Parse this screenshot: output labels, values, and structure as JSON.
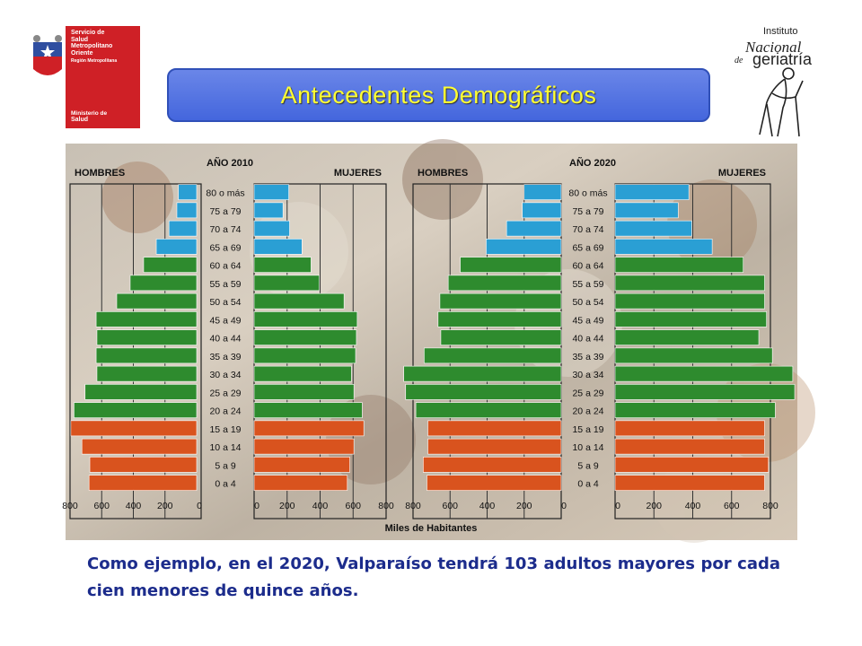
{
  "header": {
    "title": "Antecedentes Demográficos",
    "logo_left": {
      "lines": [
        "Servicio de",
        "Salud",
        "Metropolitano",
        "Oriente"
      ],
      "region": "Región Metropolitana",
      "ministry": [
        "Ministerio de",
        "Salud"
      ]
    },
    "logo_right": {
      "lines": [
        "Instituto",
        "Nacional",
        "de",
        "geriatría"
      ]
    }
  },
  "caption": "Como ejemplo, en el 2020, Valparaíso tendrá 103 adultos mayores por cada cien menores de quince años.",
  "colors": {
    "young": "#d9531e",
    "adult": "#2e8b2e",
    "elderly": "#2a9fd4",
    "title_bg": "#4f6fe0",
    "title_text": "#ffff33",
    "caption_text": "#1c2c8c",
    "logo_red": "#cf2026"
  },
  "chart_data": [
    {
      "type": "bar",
      "title": "AÑO 2010",
      "left_label": "HOMBRES",
      "right_label": "MUJERES",
      "xlabel": "Miles de Habitantes",
      "xlim": [
        0,
        800
      ],
      "xticks": [
        800,
        600,
        400,
        200,
        0,
        200,
        400,
        600,
        800
      ],
      "categories": [
        "80 o más",
        "75 a 79",
        "70 a 74",
        "65 a 69",
        "60 a 64",
        "55 a 59",
        "50 a 54",
        "45 a 49",
        "40 a 44",
        "35 a 39",
        "30 a 34",
        "25 a 29",
        "20 a 24",
        "15 a 19",
        "10 a 14",
        "5 a 9",
        "0 a 4"
      ],
      "series": [
        {
          "name": "HOMBRES",
          "values": [
            115,
            125,
            175,
            255,
            335,
            420,
            505,
            635,
            630,
            635,
            630,
            705,
            775,
            795,
            725,
            675,
            680
          ]
        },
        {
          "name": "MUJERES",
          "values": [
            210,
            175,
            215,
            290,
            345,
            395,
            545,
            625,
            620,
            615,
            590,
            605,
            655,
            665,
            605,
            580,
            565
          ]
        }
      ]
    },
    {
      "type": "bar",
      "title": "AÑO 2020",
      "left_label": "HOMBRES",
      "right_label": "MUJERES",
      "xlabel": "Miles de Habitantes",
      "xlim": [
        0,
        800
      ],
      "xticks": [
        800,
        600,
        400,
        200,
        0,
        200,
        400,
        600,
        800
      ],
      "categories": [
        "80 o más",
        "75 a 79",
        "70 a 74",
        "65 a 69",
        "60 a 64",
        "55 a 59",
        "50 a 54",
        "45 a 49",
        "40 a 44",
        "35 a 39",
        "30 a 34",
        "25 a 29",
        "20 a 24",
        "15 a 19",
        "10 a 14",
        "5 a 9",
        "0 a 4"
      ],
      "series": [
        {
          "name": "HOMBRES",
          "values": [
            200,
            210,
            295,
            405,
            545,
            610,
            655,
            665,
            650,
            740,
            850,
            840,
            785,
            720,
            720,
            745,
            725
          ]
        },
        {
          "name": "MUJERES",
          "values": [
            380,
            325,
            395,
            500,
            660,
            770,
            770,
            780,
            740,
            810,
            915,
            925,
            825,
            770,
            770,
            790,
            770
          ]
        }
      ]
    }
  ]
}
